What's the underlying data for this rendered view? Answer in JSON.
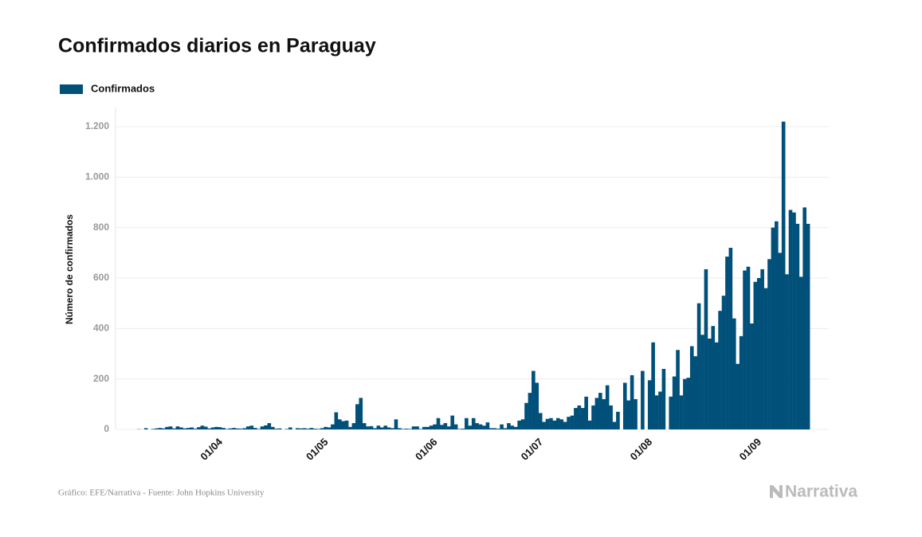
{
  "chart_data": {
    "type": "bar",
    "title": "Confirmados diarios en Paraguay",
    "y_label": "Número de confirmados",
    "source": "Gráfico: EFE/Narrativa - Fuente: John Hopkins University",
    "logo": "Narrativa",
    "categories": [
      null,
      null,
      null,
      null,
      null,
      null,
      null,
      null,
      null,
      null,
      null,
      null,
      null,
      null,
      null,
      null,
      null,
      null,
      null,
      null,
      null,
      null,
      "01/04",
      null,
      null,
      null,
      null,
      null,
      null,
      null,
      null,
      null,
      null,
      null,
      null,
      null,
      null,
      null,
      null,
      null,
      null,
      null,
      null,
      null,
      null,
      null,
      null,
      null,
      null,
      null,
      null,
      null,
      "01/05",
      null,
      null,
      null,
      null,
      null,
      null,
      null,
      null,
      null,
      null,
      null,
      null,
      null,
      null,
      null,
      null,
      null,
      null,
      null,
      null,
      null,
      null,
      null,
      null,
      null,
      null,
      null,
      null,
      null,
      null,
      "01/06",
      null,
      null,
      null,
      null,
      null,
      null,
      null,
      null,
      null,
      null,
      null,
      null,
      null,
      null,
      null,
      null,
      null,
      null,
      null,
      null,
      null,
      null,
      null,
      null,
      null,
      null,
      null,
      null,
      null,
      "01/07",
      null,
      null,
      null,
      null,
      null,
      null,
      null,
      null,
      null,
      null,
      null,
      null,
      null,
      null,
      null,
      null,
      null,
      null,
      null,
      null,
      null,
      null,
      null,
      null,
      null,
      null,
      null,
      null,
      null,
      null,
      "01/08",
      null,
      null,
      null,
      null,
      null,
      null,
      null,
      null,
      null,
      null,
      null,
      null,
      null,
      null,
      null,
      null,
      null,
      null,
      null,
      null,
      null,
      null,
      null,
      null,
      null,
      null,
      null,
      null,
      null,
      null,
      "01/09",
      null,
      null,
      null,
      null,
      null,
      null,
      null,
      null,
      null,
      null,
      null,
      null,
      null,
      null,
      null
    ],
    "series": [
      {
        "name": "Confirmados",
        "color": "#00507a",
        "values": [
          1,
          0,
          5,
          0,
          2,
          4,
          6,
          4,
          10,
          12,
          4,
          12,
          8,
          4,
          6,
          8,
          3,
          9,
          15,
          11,
          4,
          8,
          10,
          9,
          6,
          2,
          4,
          6,
          4,
          3,
          5,
          12,
          15,
          6,
          2,
          12,
          16,
          25,
          10,
          3,
          4,
          0,
          2,
          8,
          0,
          5,
          4,
          5,
          3,
          6,
          3,
          2,
          5,
          10,
          8,
          20,
          68,
          40,
          33,
          35,
          10,
          25,
          100,
          125,
          25,
          12,
          13,
          5,
          15,
          8,
          15,
          8,
          5,
          40,
          5,
          2,
          3,
          2,
          12,
          12,
          2,
          10,
          10,
          15,
          20,
          45,
          18,
          25,
          12,
          55,
          20,
          2,
          3,
          45,
          15,
          45,
          25,
          20,
          15,
          28,
          5,
          5,
          3,
          20,
          5,
          25,
          15,
          10,
          35,
          40,
          105,
          145,
          232,
          185,
          65,
          30,
          42,
          45,
          35,
          45,
          40,
          30,
          50,
          55,
          85,
          95,
          85,
          130,
          35,
          95,
          125,
          145,
          120,
          175,
          95,
          30,
          70,
          0,
          185,
          115,
          215,
          120,
          0,
          232,
          0,
          195,
          345,
          135,
          150,
          240,
          0,
          130,
          210,
          315,
          135,
          200,
          205,
          330,
          290,
          500,
          375,
          635,
          360,
          410,
          345,
          470,
          530,
          685,
          720,
          440,
          260,
          370,
          630,
          645,
          420,
          585,
          600,
          635,
          560,
          675,
          800,
          825,
          700,
          1220,
          615,
          870,
          860,
          815,
          605,
          880,
          815
        ]
      }
    ],
    "ylim": [
      0,
      1200
    ],
    "yticks": [
      0,
      200,
      400,
      600,
      800,
      {
        "value": 1000,
        "label": "1.000"
      },
      {
        "value": 1200,
        "label": "1.200"
      }
    ],
    "grid": true
  }
}
